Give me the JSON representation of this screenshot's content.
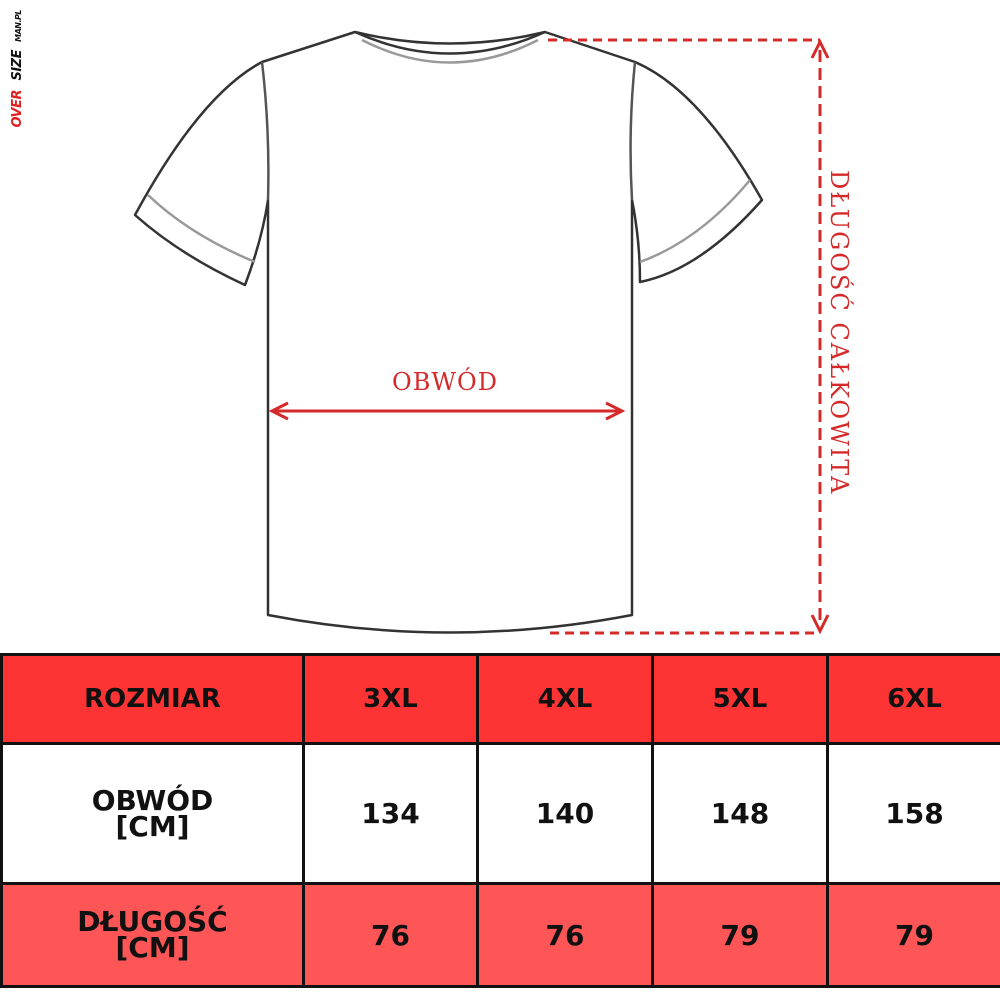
{
  "logo": {
    "part1": "OVER",
    "part2": "SIZE",
    "part3": "MAN.PL"
  },
  "diagram": {
    "width_label": "OBWÓD",
    "length_label": "DŁUGOŚĆ CAŁKOWITA",
    "accent_color": "#d42a2a"
  },
  "table": {
    "header": {
      "label": "ROZMIAR",
      "sizes": [
        "3XL",
        "4XL",
        "5XL",
        "6XL"
      ]
    },
    "rows": [
      {
        "label_line1": "OBWÓD",
        "label_line2": "[CM]",
        "values": [
          "134",
          "140",
          "148",
          "158"
        ]
      },
      {
        "label_line1": "DŁUGOŚĆ",
        "label_line2": "[CM]",
        "values": [
          "76",
          "76",
          "79",
          "79"
        ]
      }
    ],
    "colors": {
      "header": "#fe3434",
      "row_alt": "#fe5656"
    }
  }
}
